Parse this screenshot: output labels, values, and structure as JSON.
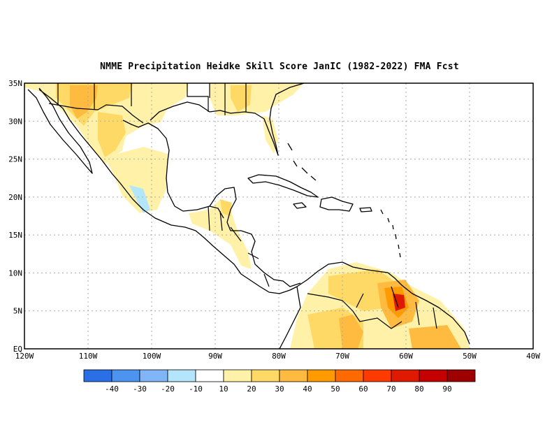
{
  "title": "NMME  Precipitation Heidke Skill Score JanIC (1982-2022) FMA Fcst",
  "lat_labels": [
    "35N",
    "30N",
    "25N",
    "20N",
    "15N",
    "10N",
    "5N",
    "EQ"
  ],
  "lon_labels": [
    "120W",
    "110W",
    "100W",
    "90W",
    "80W",
    "70W",
    "60W",
    "50W",
    "40W"
  ],
  "colorbar": {
    "colors": [
      "#2b6fe6",
      "#4d94f0",
      "#80b6f7",
      "#b3e6fb",
      "#ffffff",
      "#fff2a8",
      "#ffd966",
      "#ffbb40",
      "#ff9a00",
      "#ff6a00",
      "#ff3a00",
      "#e01a00",
      "#c40000",
      "#9e0000"
    ],
    "labels": [
      "-40",
      "-30",
      "-20",
      "-10",
      "10",
      "20",
      "30",
      "40",
      "50",
      "60",
      "70",
      "80",
      "90"
    ]
  },
  "colors": {
    "coast": "#000000",
    "grid": "#aaaaaa",
    "skill_20": "#fff2a8",
    "skill_30": "#ffd966",
    "skill_40": "#ffbb40",
    "skill_50": "#ff9a00",
    "skill_70": "#e01a00",
    "skill_neg": "#b3e6fb"
  }
}
